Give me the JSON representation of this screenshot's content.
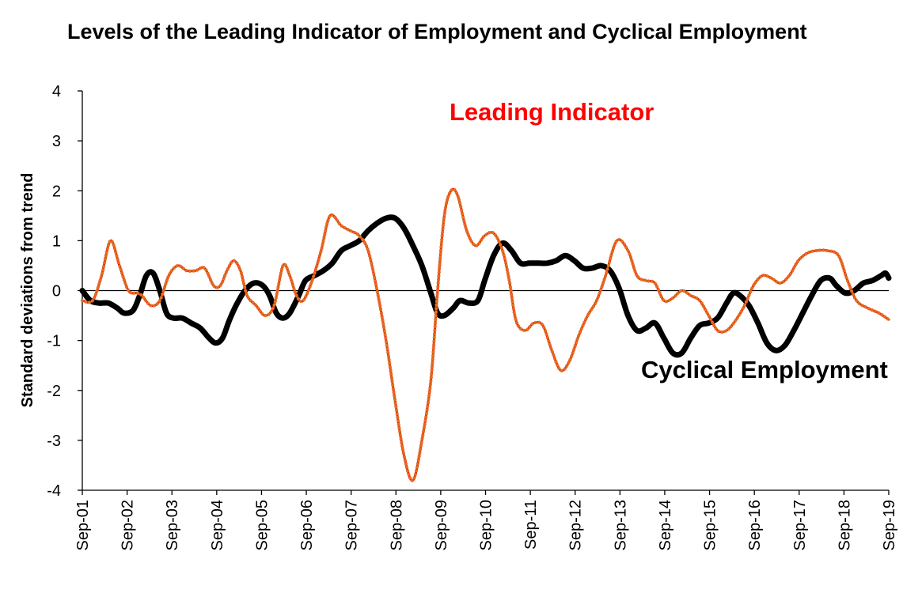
{
  "chart_data": {
    "type": "line",
    "title": "Levels of the Leading Indicator of Employment and Cyclical Employment",
    "xlabel": "",
    "ylabel": "Standard deviations from trend",
    "ylim": [
      -4,
      4
    ],
    "yticks": [
      4,
      3,
      2,
      1,
      0,
      -1,
      -2,
      -3,
      -4
    ],
    "xlim": [
      2001.67,
      2019.67
    ],
    "xtick_labels": [
      "Sep-01",
      "Sep-02",
      "Sep-03",
      "Sep-04",
      "Sep-05",
      "Sep-06",
      "Sep-07",
      "Sep-08",
      "Sep-09",
      "Sep-10",
      "Sep-11",
      "Sep-12",
      "Sep-13",
      "Sep-14",
      "Sep-15",
      "Sep-16",
      "Sep-17",
      "Sep-18",
      "Sep-19"
    ],
    "xtick_values": [
      2001.67,
      2002.67,
      2003.67,
      2004.67,
      2005.67,
      2006.67,
      2007.67,
      2008.67,
      2009.67,
      2010.67,
      2011.67,
      2012.67,
      2013.67,
      2014.67,
      2015.67,
      2016.67,
      2017.67,
      2018.67,
      2019.67
    ],
    "series": [
      {
        "name": "Leading Indicator",
        "label": "Leading Indicator",
        "color": "#FF0000",
        "marker_color": "#E07020",
        "points": [
          [
            2001.67,
            -0.2
          ],
          [
            2001.9,
            -0.2
          ],
          [
            2002.1,
            0.3
          ],
          [
            2002.3,
            1.0
          ],
          [
            2002.5,
            0.5
          ],
          [
            2002.7,
            0.0
          ],
          [
            2002.9,
            -0.05
          ],
          [
            2003.0,
            -0.1
          ],
          [
            2003.2,
            -0.3
          ],
          [
            2003.4,
            -0.2
          ],
          [
            2003.6,
            0.3
          ],
          [
            2003.8,
            0.5
          ],
          [
            2004.0,
            0.4
          ],
          [
            2004.2,
            0.4
          ],
          [
            2004.4,
            0.45
          ],
          [
            2004.6,
            0.1
          ],
          [
            2004.75,
            0.1
          ],
          [
            2004.9,
            0.4
          ],
          [
            2005.05,
            0.6
          ],
          [
            2005.2,
            0.4
          ],
          [
            2005.35,
            -0.1
          ],
          [
            2005.55,
            -0.3
          ],
          [
            2005.75,
            -0.5
          ],
          [
            2005.95,
            -0.3
          ],
          [
            2006.15,
            0.5
          ],
          [
            2006.3,
            0.3
          ],
          [
            2006.45,
            -0.1
          ],
          [
            2006.6,
            -0.2
          ],
          [
            2006.8,
            0.2
          ],
          [
            2007.0,
            0.8
          ],
          [
            2007.2,
            1.5
          ],
          [
            2007.45,
            1.3
          ],
          [
            2007.65,
            1.2
          ],
          [
            2007.85,
            1.1
          ],
          [
            2008.05,
            0.8
          ],
          [
            2008.25,
            0.0
          ],
          [
            2008.45,
            -1.0
          ],
          [
            2008.65,
            -2.2
          ],
          [
            2008.85,
            -3.3
          ],
          [
            2009.05,
            -3.8
          ],
          [
            2009.25,
            -3.0
          ],
          [
            2009.45,
            -1.8
          ],
          [
            2009.6,
            0.0
          ],
          [
            2009.75,
            1.5
          ],
          [
            2009.9,
            2.0
          ],
          [
            2010.05,
            1.9
          ],
          [
            2010.25,
            1.2
          ],
          [
            2010.45,
            0.9
          ],
          [
            2010.65,
            1.1
          ],
          [
            2010.85,
            1.15
          ],
          [
            2011.05,
            0.8
          ],
          [
            2011.2,
            0.2
          ],
          [
            2011.35,
            -0.6
          ],
          [
            2011.55,
            -0.8
          ],
          [
            2011.75,
            -0.65
          ],
          [
            2011.95,
            -0.7
          ],
          [
            2012.15,
            -1.2
          ],
          [
            2012.35,
            -1.6
          ],
          [
            2012.55,
            -1.4
          ],
          [
            2012.75,
            -0.9
          ],
          [
            2012.95,
            -0.5
          ],
          [
            2013.15,
            -0.2
          ],
          [
            2013.35,
            0.3
          ],
          [
            2013.6,
            1.0
          ],
          [
            2013.85,
            0.8
          ],
          [
            2014.05,
            0.3
          ],
          [
            2014.25,
            0.2
          ],
          [
            2014.45,
            0.15
          ],
          [
            2014.65,
            -0.2
          ],
          [
            2014.85,
            -0.15
          ],
          [
            2015.05,
            0.0
          ],
          [
            2015.25,
            -0.1
          ],
          [
            2015.45,
            -0.2
          ],
          [
            2015.65,
            -0.5
          ],
          [
            2015.85,
            -0.8
          ],
          [
            2016.05,
            -0.8
          ],
          [
            2016.25,
            -0.6
          ],
          [
            2016.45,
            -0.3
          ],
          [
            2016.65,
            0.1
          ],
          [
            2016.85,
            0.3
          ],
          [
            2017.05,
            0.25
          ],
          [
            2017.25,
            0.15
          ],
          [
            2017.45,
            0.3
          ],
          [
            2017.65,
            0.6
          ],
          [
            2017.85,
            0.75
          ],
          [
            2018.05,
            0.8
          ],
          [
            2018.3,
            0.8
          ],
          [
            2018.55,
            0.7
          ],
          [
            2018.75,
            0.2
          ],
          [
            2018.95,
            -0.2
          ],
          [
            2019.2,
            -0.35
          ],
          [
            2019.45,
            -0.45
          ],
          [
            2019.67,
            -0.58
          ]
        ]
      },
      {
        "name": "Cyclical Employment",
        "label": "Cyclical Employment",
        "color": "#000000",
        "points": [
          [
            2001.67,
            0.0
          ],
          [
            2001.85,
            -0.2
          ],
          [
            2002.05,
            -0.25
          ],
          [
            2002.25,
            -0.25
          ],
          [
            2002.45,
            -0.35
          ],
          [
            2002.6,
            -0.45
          ],
          [
            2002.8,
            -0.4
          ],
          [
            2002.95,
            -0.1
          ],
          [
            2003.1,
            0.3
          ],
          [
            2003.25,
            0.35
          ],
          [
            2003.4,
            0.0
          ],
          [
            2003.55,
            -0.45
          ],
          [
            2003.7,
            -0.55
          ],
          [
            2003.9,
            -0.55
          ],
          [
            2004.1,
            -0.65
          ],
          [
            2004.3,
            -0.75
          ],
          [
            2004.5,
            -0.95
          ],
          [
            2004.65,
            -1.05
          ],
          [
            2004.8,
            -0.95
          ],
          [
            2004.95,
            -0.6
          ],
          [
            2005.1,
            -0.3
          ],
          [
            2005.3,
            0.0
          ],
          [
            2005.5,
            0.15
          ],
          [
            2005.7,
            0.1
          ],
          [
            2005.85,
            -0.1
          ],
          [
            2006.0,
            -0.45
          ],
          [
            2006.15,
            -0.55
          ],
          [
            2006.3,
            -0.45
          ],
          [
            2006.5,
            -0.1
          ],
          [
            2006.65,
            0.2
          ],
          [
            2006.85,
            0.3
          ],
          [
            2007.05,
            0.4
          ],
          [
            2007.25,
            0.55
          ],
          [
            2007.45,
            0.8
          ],
          [
            2007.65,
            0.9
          ],
          [
            2007.85,
            1.0
          ],
          [
            2008.05,
            1.2
          ],
          [
            2008.25,
            1.35
          ],
          [
            2008.45,
            1.45
          ],
          [
            2008.65,
            1.45
          ],
          [
            2008.85,
            1.25
          ],
          [
            2009.05,
            0.9
          ],
          [
            2009.25,
            0.5
          ],
          [
            2009.45,
            -0.05
          ],
          [
            2009.6,
            -0.45
          ],
          [
            2009.75,
            -0.5
          ],
          [
            2009.95,
            -0.35
          ],
          [
            2010.1,
            -0.2
          ],
          [
            2010.3,
            -0.25
          ],
          [
            2010.5,
            -0.2
          ],
          [
            2010.65,
            0.2
          ],
          [
            2010.85,
            0.7
          ],
          [
            2011.05,
            0.95
          ],
          [
            2011.25,
            0.8
          ],
          [
            2011.45,
            0.55
          ],
          [
            2011.65,
            0.55
          ],
          [
            2011.85,
            0.55
          ],
          [
            2012.05,
            0.55
          ],
          [
            2012.25,
            0.6
          ],
          [
            2012.45,
            0.7
          ],
          [
            2012.65,
            0.6
          ],
          [
            2012.85,
            0.45
          ],
          [
            2013.05,
            0.45
          ],
          [
            2013.25,
            0.5
          ],
          [
            2013.45,
            0.4
          ],
          [
            2013.65,
            0.05
          ],
          [
            2013.85,
            -0.5
          ],
          [
            2014.05,
            -0.8
          ],
          [
            2014.25,
            -0.75
          ],
          [
            2014.45,
            -0.65
          ],
          [
            2014.65,
            -0.95
          ],
          [
            2014.85,
            -1.25
          ],
          [
            2015.05,
            -1.25
          ],
          [
            2015.25,
            -0.95
          ],
          [
            2015.45,
            -0.7
          ],
          [
            2015.65,
            -0.65
          ],
          [
            2015.85,
            -0.55
          ],
          [
            2016.05,
            -0.25
          ],
          [
            2016.2,
            -0.05
          ],
          [
            2016.35,
            -0.1
          ],
          [
            2016.55,
            -0.3
          ],
          [
            2016.75,
            -0.65
          ],
          [
            2016.95,
            -1.05
          ],
          [
            2017.15,
            -1.2
          ],
          [
            2017.35,
            -1.1
          ],
          [
            2017.55,
            -0.8
          ],
          [
            2017.75,
            -0.45
          ],
          [
            2017.95,
            -0.1
          ],
          [
            2018.15,
            0.2
          ],
          [
            2018.35,
            0.25
          ],
          [
            2018.5,
            0.1
          ],
          [
            2018.7,
            -0.05
          ],
          [
            2018.9,
            0.0
          ],
          [
            2019.1,
            0.15
          ],
          [
            2019.3,
            0.2
          ],
          [
            2019.5,
            0.3
          ],
          [
            2019.6,
            0.35
          ],
          [
            2019.67,
            0.25
          ]
        ]
      }
    ],
    "legend": "direct-labels"
  }
}
